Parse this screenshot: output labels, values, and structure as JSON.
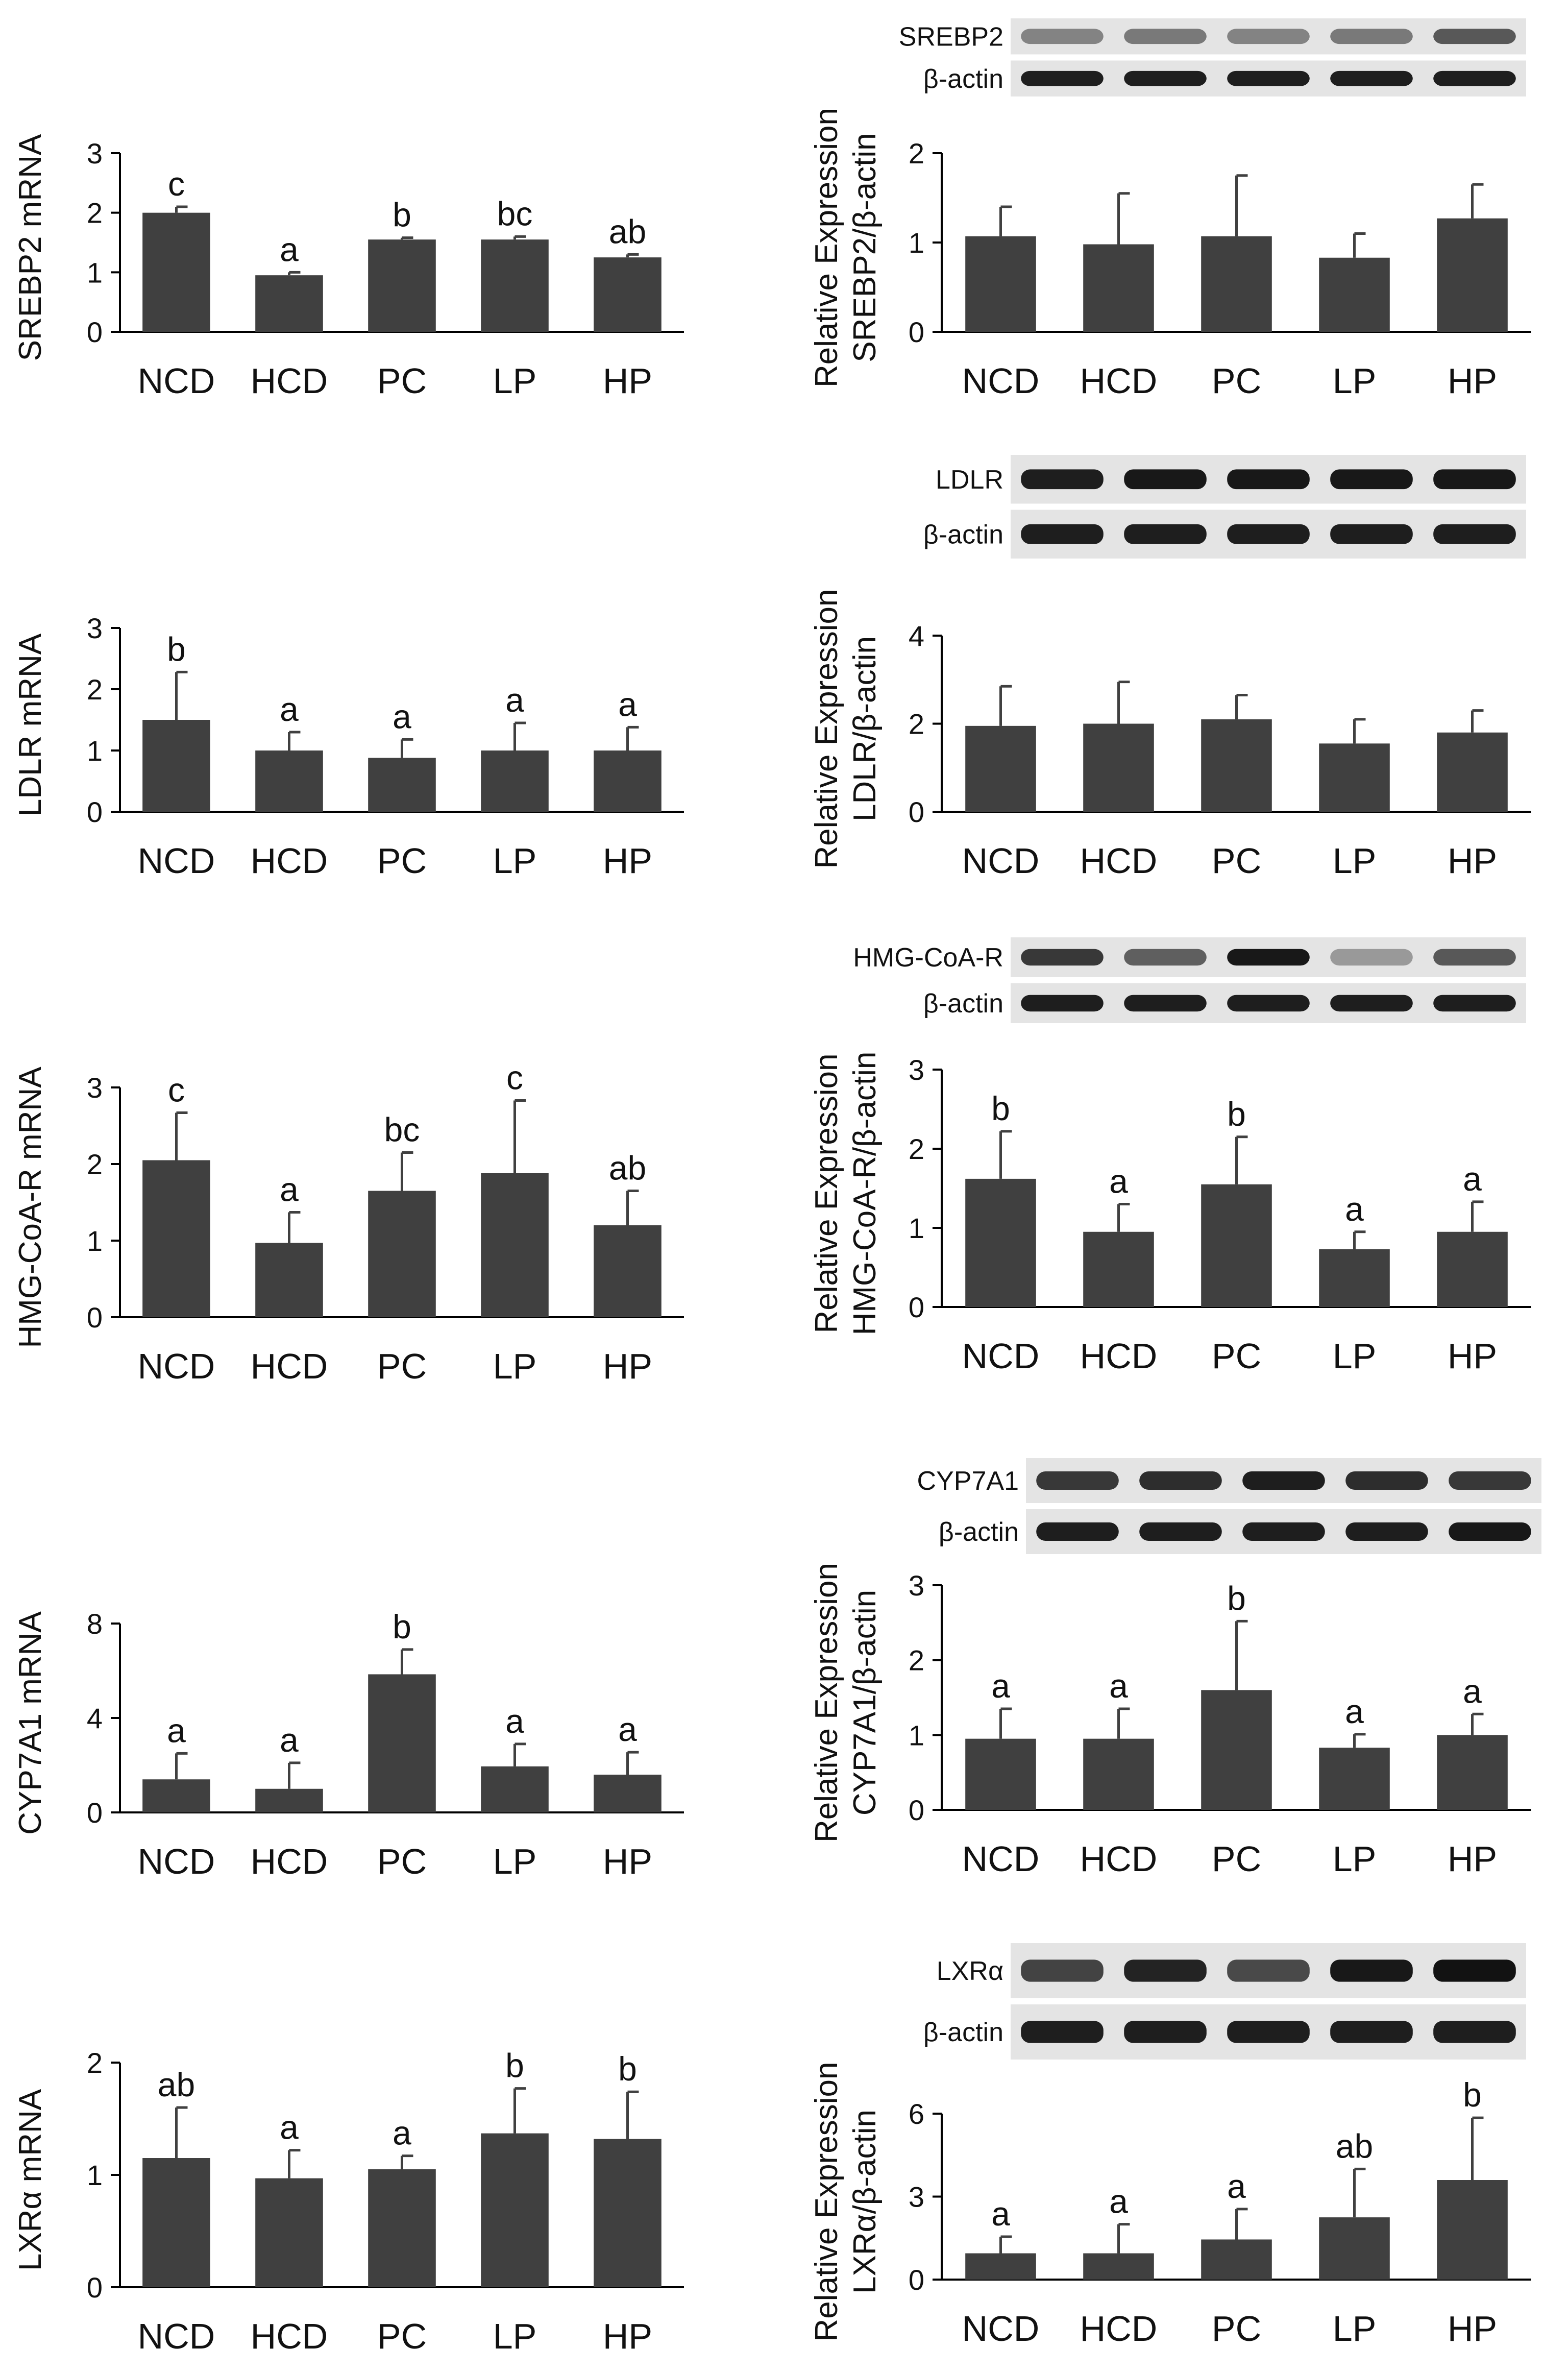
{
  "colors": {
    "bar": "#404040",
    "axis": "#000000",
    "text": "#111111"
  },
  "chart_data": [
    {
      "type": "bar",
      "panel": "left",
      "row": 1,
      "ylabel": "SREBP2 mRNA",
      "ylim": [
        0,
        3
      ],
      "yticks": [
        0,
        1,
        2,
        3
      ],
      "categories": [
        "NCD",
        "HCD",
        "PC",
        "LP",
        "HP"
      ],
      "values": [
        2.0,
        0.95,
        1.55,
        1.55,
        1.25
      ],
      "errors": [
        0.1,
        0.05,
        0.03,
        0.05,
        0.05
      ],
      "significance": [
        "c",
        "a",
        "b",
        "bc",
        "ab"
      ]
    },
    {
      "type": "bar",
      "panel": "right",
      "row": 1,
      "ylabel": [
        "Relative Expression",
        "SREBP2/β-actin"
      ],
      "blot_labels": [
        "SREBP2",
        "β-actin"
      ],
      "ylim": [
        0,
        2
      ],
      "yticks": [
        0,
        1,
        2
      ],
      "categories": [
        "NCD",
        "HCD",
        "PC",
        "LP",
        "HP"
      ],
      "values": [
        1.07,
        0.98,
        1.07,
        0.83,
        1.27
      ],
      "errors": [
        0.33,
        0.57,
        0.68,
        0.27,
        0.38
      ],
      "significance": [
        "",
        "",
        "",
        "",
        ""
      ]
    },
    {
      "type": "bar",
      "panel": "left",
      "row": 2,
      "ylabel": "LDLR mRNA",
      "ylim": [
        0,
        3
      ],
      "yticks": [
        0,
        1,
        2,
        3
      ],
      "categories": [
        "NCD",
        "HCD",
        "PC",
        "LP",
        "HP"
      ],
      "values": [
        1.5,
        1.0,
        0.88,
        1.0,
        1.0
      ],
      "errors": [
        0.78,
        0.3,
        0.3,
        0.45,
        0.38
      ],
      "significance": [
        "b",
        "a",
        "a",
        "a",
        "a"
      ]
    },
    {
      "type": "bar",
      "panel": "right",
      "row": 2,
      "ylabel": [
        "Relative Expression",
        "LDLR/β-actin"
      ],
      "blot_labels": [
        "LDLR",
        "β-actin"
      ],
      "ylim": [
        0,
        4
      ],
      "yticks": [
        0,
        2,
        4
      ],
      "categories": [
        "NCD",
        "HCD",
        "PC",
        "LP",
        "HP"
      ],
      "values": [
        1.95,
        2.0,
        2.1,
        1.55,
        1.8
      ],
      "errors": [
        0.9,
        0.95,
        0.55,
        0.55,
        0.5
      ],
      "significance": [
        "",
        "",
        "",
        "",
        ""
      ]
    },
    {
      "type": "bar",
      "panel": "left",
      "row": 3,
      "ylabel": "HMG-CoA-R mRNA",
      "ylim": [
        0,
        3
      ],
      "yticks": [
        0,
        1,
        2,
        3
      ],
      "categories": [
        "NCD",
        "HCD",
        "PC",
        "LP",
        "HP"
      ],
      "values": [
        2.05,
        0.97,
        1.65,
        1.88,
        1.2
      ],
      "errors": [
        0.62,
        0.4,
        0.5,
        0.95,
        0.45
      ],
      "significance": [
        "c",
        "a",
        "bc",
        "c",
        "ab"
      ]
    },
    {
      "type": "bar",
      "panel": "right",
      "row": 3,
      "ylabel": [
        "Relative Expression",
        "HMG-CoA-R/β-actin"
      ],
      "blot_labels": [
        "HMG-CoA-R",
        "β-actin"
      ],
      "ylim": [
        0,
        3
      ],
      "yticks": [
        0,
        1,
        2,
        3
      ],
      "categories": [
        "NCD",
        "HCD",
        "PC",
        "LP",
        "HP"
      ],
      "values": [
        1.62,
        0.95,
        1.55,
        0.73,
        0.95
      ],
      "errors": [
        0.6,
        0.35,
        0.6,
        0.22,
        0.38
      ],
      "significance": [
        "b",
        "a",
        "b",
        "a",
        "a"
      ]
    },
    {
      "type": "bar",
      "panel": "left",
      "row": 4,
      "ylabel": "CYP7A1 mRNA",
      "ylim": [
        0,
        8
      ],
      "yticks": [
        0,
        4,
        8
      ],
      "categories": [
        "NCD",
        "HCD",
        "PC",
        "LP",
        "HP"
      ],
      "values": [
        1.4,
        1.0,
        5.85,
        1.95,
        1.6
      ],
      "errors": [
        1.1,
        1.1,
        1.05,
        0.95,
        0.95
      ],
      "significance": [
        "a",
        "a",
        "b",
        "a",
        "a"
      ]
    },
    {
      "type": "bar",
      "panel": "right",
      "row": 4,
      "ylabel": [
        "Relative Expression",
        "CYP7A1/β-actin"
      ],
      "blot_labels": [
        "CYP7A1",
        "β-actin"
      ],
      "ylim": [
        0,
        3
      ],
      "yticks": [
        0,
        1,
        2,
        3
      ],
      "categories": [
        "NCD",
        "HCD",
        "PC",
        "LP",
        "HP"
      ],
      "values": [
        0.95,
        0.95,
        1.6,
        0.83,
        1.0
      ],
      "errors": [
        0.4,
        0.4,
        0.92,
        0.18,
        0.28
      ],
      "significance": [
        "a",
        "a",
        "b",
        "a",
        "a"
      ]
    },
    {
      "type": "bar",
      "panel": "left",
      "row": 5,
      "ylabel": "LXRα mRNA",
      "ylim": [
        0,
        2
      ],
      "yticks": [
        0,
        1,
        2
      ],
      "categories": [
        "NCD",
        "HCD",
        "PC",
        "LP",
        "HP"
      ],
      "values": [
        1.15,
        0.97,
        1.05,
        1.37,
        1.32
      ],
      "errors": [
        0.45,
        0.25,
        0.12,
        0.4,
        0.42
      ],
      "significance": [
        "ab",
        "a",
        "a",
        "b",
        "b"
      ]
    },
    {
      "type": "bar",
      "panel": "right",
      "row": 5,
      "ylabel": [
        "Relative Expression",
        "LXRα/β-actin"
      ],
      "blot_labels": [
        "LXRα",
        "β-actin"
      ],
      "ylim": [
        0,
        6
      ],
      "yticks": [
        0,
        3,
        6
      ],
      "categories": [
        "NCD",
        "HCD",
        "PC",
        "LP",
        "HP"
      ],
      "values": [
        0.95,
        0.95,
        1.45,
        2.25,
        3.6
      ],
      "errors": [
        0.6,
        1.05,
        1.1,
        1.75,
        2.25
      ],
      "significance": [
        "a",
        "a",
        "a",
        "ab",
        "b"
      ]
    }
  ]
}
